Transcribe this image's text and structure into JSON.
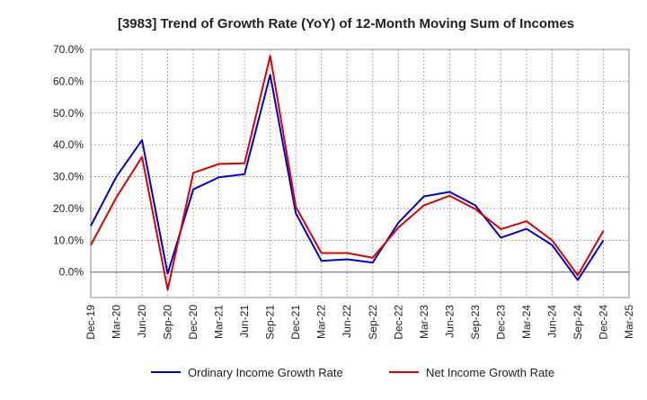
{
  "chart_data": {
    "type": "line",
    "title": "[3983]  Trend of Growth Rate (YoY) of 12-Month Moving Sum of Incomes",
    "xlabel": "",
    "ylabel": "",
    "categories": [
      "Dec-19",
      "Mar-20",
      "Jun-20",
      "Sep-20",
      "Dec-20",
      "Mar-21",
      "Jun-21",
      "Sep-21",
      "Dec-21",
      "Mar-22",
      "Jun-22",
      "Sep-22",
      "Dec-22",
      "Mar-23",
      "Jun-23",
      "Sep-23",
      "Dec-23",
      "Mar-24",
      "Jun-24",
      "Sep-24",
      "Dec-24",
      "Mar-25"
    ],
    "ylim": [
      -8,
      70
    ],
    "yticks": [
      0,
      10,
      20,
      30,
      40,
      50,
      60,
      70
    ],
    "ytick_labels": [
      "0.0%",
      "10.0%",
      "20.0%",
      "30.0%",
      "40.0%",
      "50.0%",
      "60.0%",
      "70.0%"
    ],
    "grid": true,
    "legend_position": "bottom-center",
    "series": [
      {
        "name": "Ordinary Income Growth Rate",
        "color": "#0000cc",
        "values": [
          14.5,
          30.0,
          41.5,
          -0.5,
          26.0,
          29.8,
          30.8,
          62.0,
          18.5,
          3.5,
          4.0,
          3.0,
          15.5,
          23.8,
          25.2,
          21.0,
          10.8,
          13.6,
          8.5,
          -2.5,
          10.0,
          null
        ]
      },
      {
        "name": "Net Income Growth Rate",
        "color": "#dd0000",
        "values": [
          8.5,
          23.5,
          36.2,
          -5.5,
          31.2,
          34.0,
          34.2,
          68.0,
          20.5,
          6.0,
          6.0,
          4.5,
          14.0,
          21.0,
          24.0,
          19.8,
          13.5,
          16.0,
          10.0,
          -1.0,
          13.0,
          null
        ]
      }
    ]
  }
}
